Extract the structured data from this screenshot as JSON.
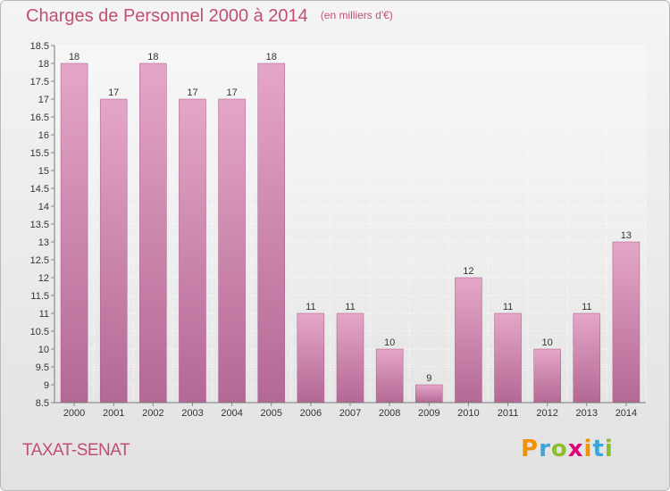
{
  "header": {
    "title": "Charges de Personnel 2000 à 2014",
    "subtitle": "(en milliers d'€)"
  },
  "footer": {
    "place": "TAXAT-SENAT",
    "logo_letters": [
      "P",
      "r",
      "o",
      "x",
      "i",
      "t",
      "i"
    ],
    "logo_colors": [
      "#f39200",
      "#3aa7d9",
      "#8dbf2c",
      "#e4007c",
      "#f39200",
      "#3aa7d9",
      "#8dbf2c"
    ]
  },
  "chart_data": {
    "type": "bar",
    "title": "Charges de Personnel 2000 à 2014",
    "subtitle": "(en milliers d'€)",
    "categories": [
      "2000",
      "2001",
      "2002",
      "2003",
      "2004",
      "2005",
      "2006",
      "2007",
      "2008",
      "2009",
      "2010",
      "2011",
      "2012",
      "2013",
      "2014"
    ],
    "values": [
      18,
      17,
      18,
      17,
      17,
      18,
      11,
      11,
      10,
      9,
      12,
      11,
      10,
      11,
      13
    ],
    "data_labels": [
      "18",
      "17",
      "18",
      "17",
      "17",
      "18",
      "11",
      "11",
      "10",
      "9",
      "12",
      "11",
      "10",
      "11",
      "13"
    ],
    "ylim": [
      8.5,
      18.5
    ],
    "yticks": [
      "8.5",
      "9",
      "9.5",
      "10",
      "10.5",
      "11",
      "11.5",
      "12",
      "12.5",
      "13",
      "13.5",
      "14",
      "14.5",
      "15",
      "15.5",
      "16",
      "16.5",
      "17",
      "17.5",
      "18",
      "18.5"
    ],
    "grid": true,
    "bar_color": "#d993b9",
    "bar_color_dark": "#b56893",
    "label_color": "#c0506f"
  }
}
